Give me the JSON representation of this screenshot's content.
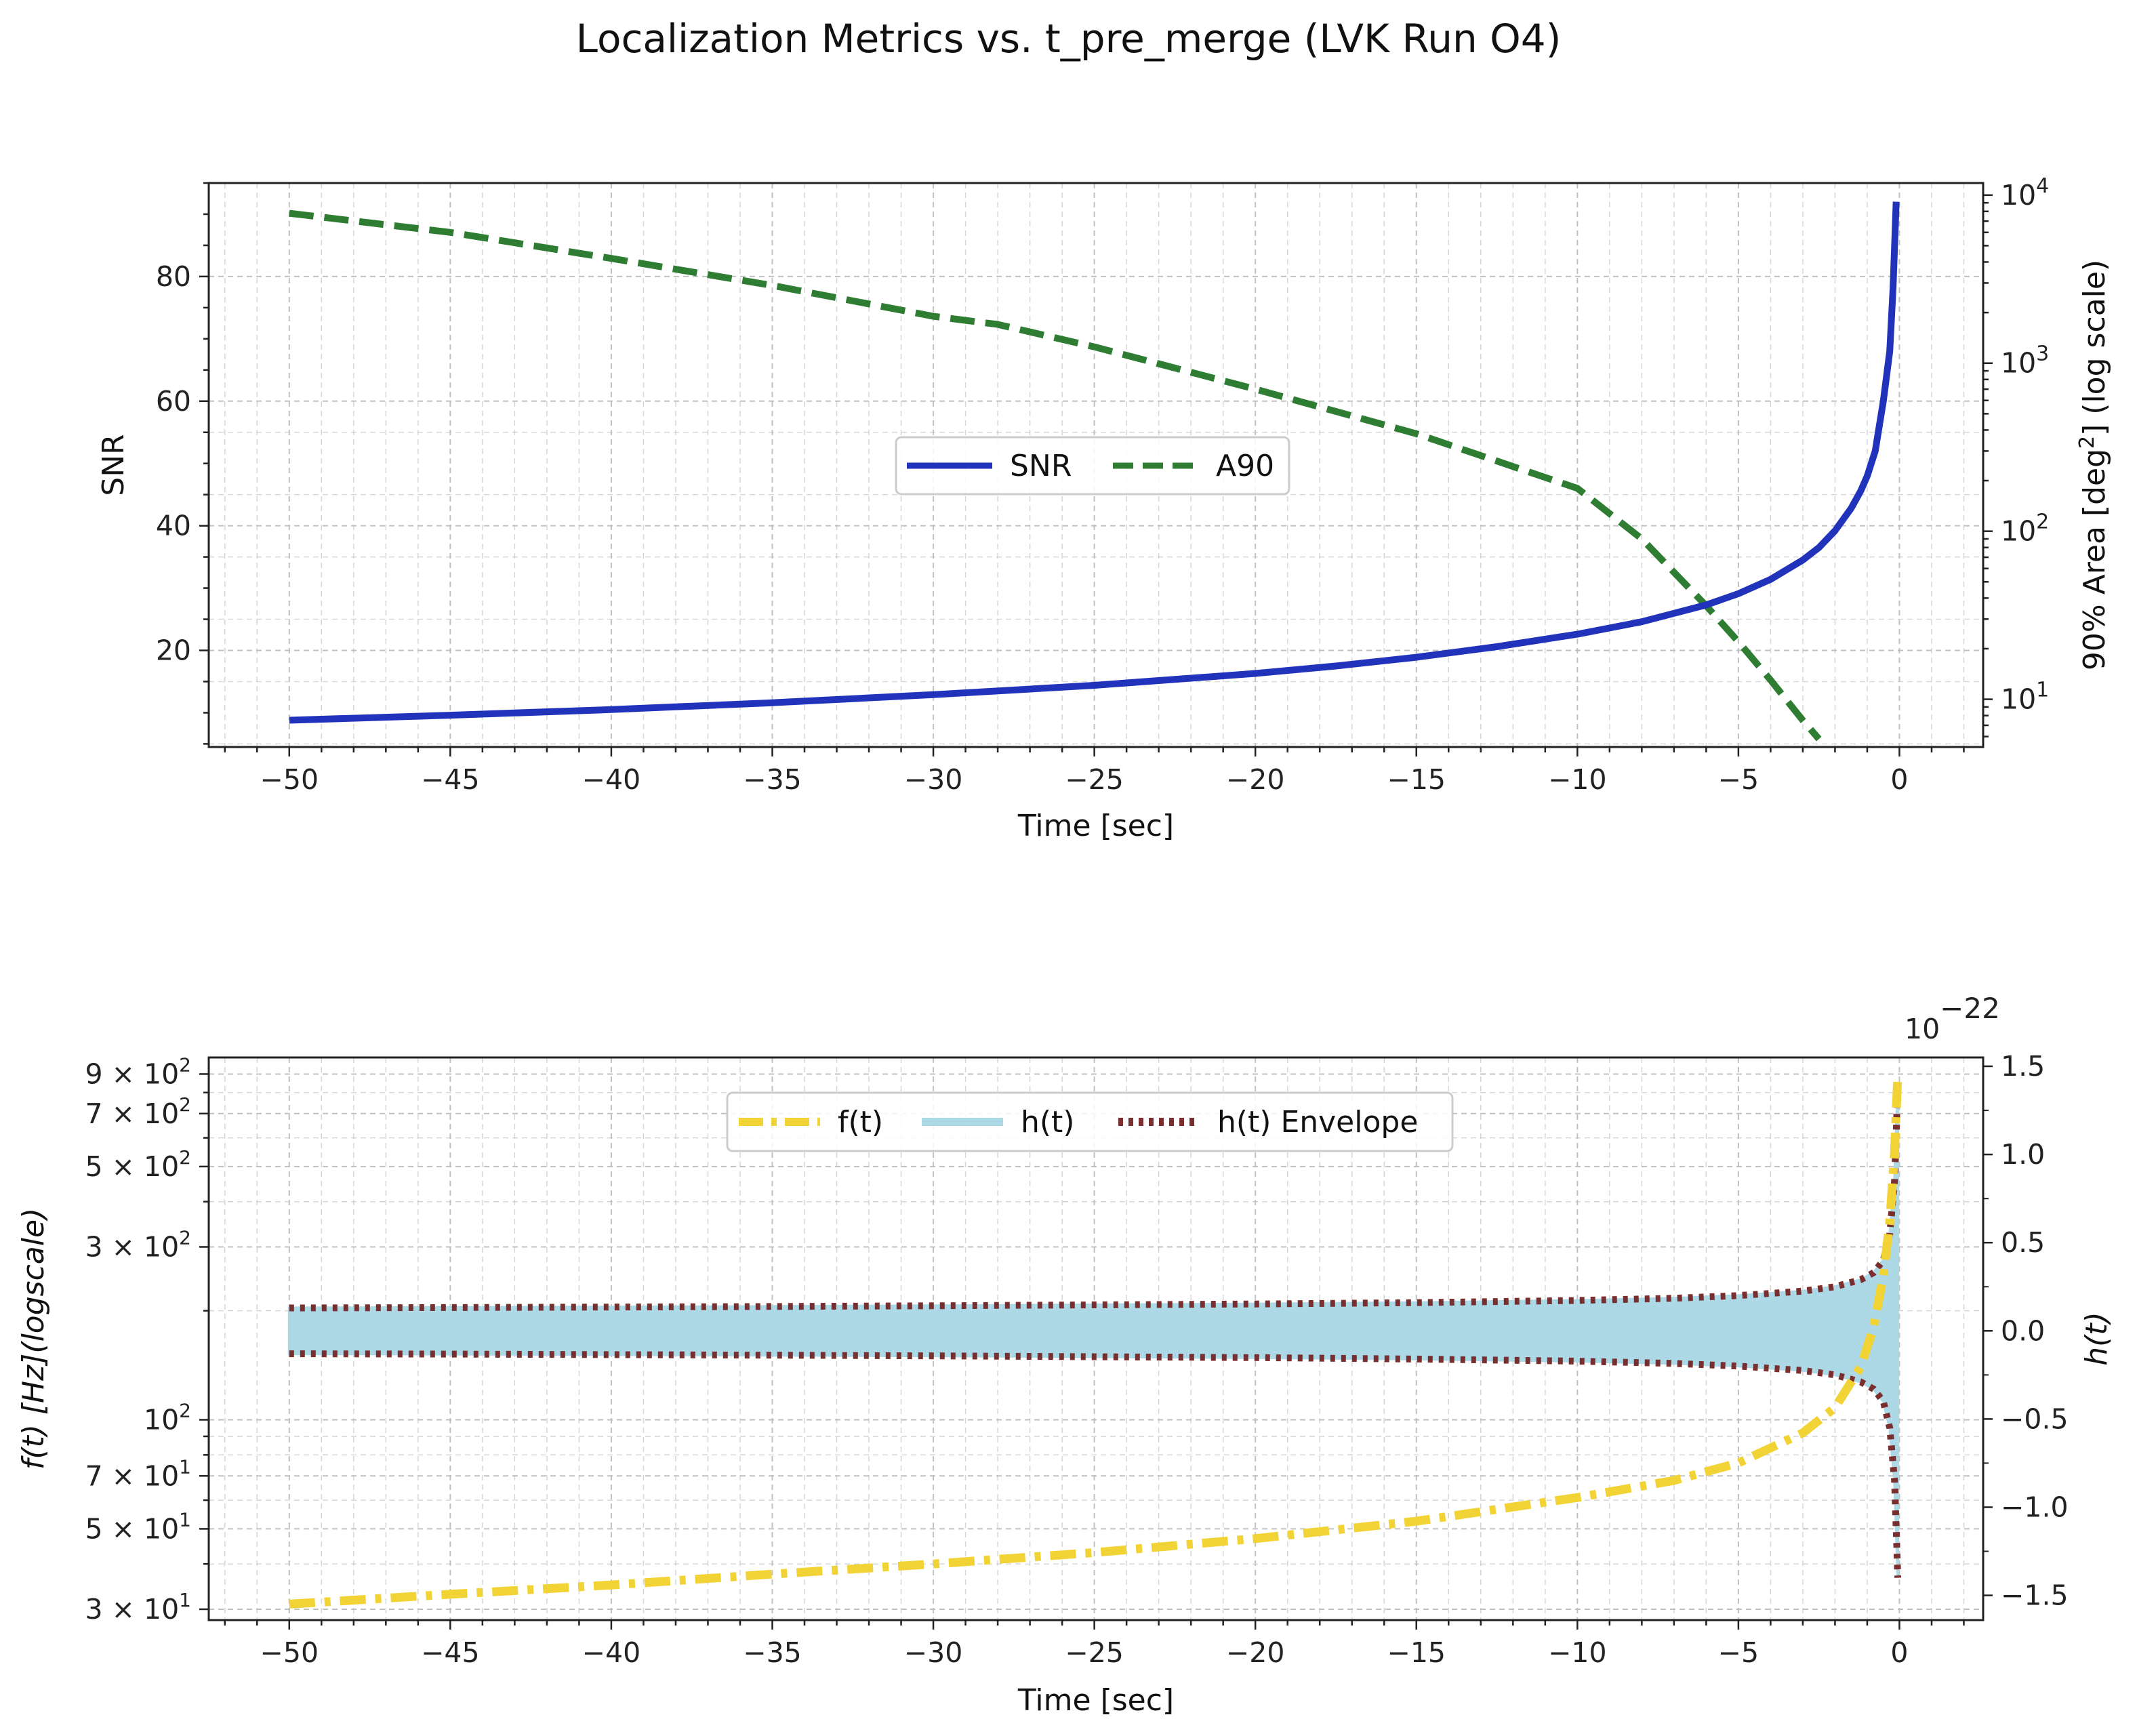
{
  "figure": {
    "title": "Localization Metrics vs. t_pre_merge (LVK Run O4)"
  },
  "colors": {
    "snr": "#2233bb",
    "a90": "#2e7d32",
    "f": "#f2d335",
    "h": "#add8e6",
    "envelope": "#7a2e2e",
    "grid": "#bbbbbb"
  },
  "chart_data": [
    {
      "type": "line",
      "title": "",
      "xlabel": "Time [sec]",
      "ylabel": "SNR",
      "y2label_parts": {
        "pre": "90% Area [deg",
        "sup": "2",
        "post": "] (log scale)"
      },
      "xlim": [
        -52.5,
        2.6
      ],
      "ylim": [
        4.5,
        95
      ],
      "y2lim": [
        5.2,
        11800
      ],
      "y2scale": "log",
      "x_ticks": [
        -50,
        -45,
        -40,
        -35,
        -30,
        -25,
        -20,
        -15,
        -10,
        -5,
        0
      ],
      "x_tick_labels": [
        "−50",
        "−45",
        "−40",
        "−35",
        "−30",
        "−25",
        "−20",
        "−15",
        "−10",
        "−5",
        "0"
      ],
      "y_ticks": [
        20,
        40,
        60,
        80
      ],
      "y_tick_labels": [
        "20",
        "40",
        "60",
        "80"
      ],
      "y2_tick_values": [
        10,
        100,
        1000,
        10000
      ],
      "y2_tick_base": "10",
      "y2_tick_exps": [
        "1",
        "2",
        "3",
        "4"
      ],
      "legend": {
        "position": "center",
        "entries": [
          "SNR",
          "A90"
        ]
      },
      "series": [
        {
          "name": "SNR",
          "axis": "left",
          "x": [
            -50,
            -45,
            -40,
            -35,
            -30,
            -25,
            -20,
            -17.5,
            -15,
            -12.5,
            -10,
            -8,
            -6,
            -5,
            -4,
            -3,
            -2.5,
            -2,
            -1.5,
            -1.2,
            -1,
            -0.75,
            -0.5,
            -0.3,
            -0.2,
            -0.1
          ],
          "values": [
            8.8,
            9.6,
            10.5,
            11.6,
            12.9,
            14.4,
            16.3,
            17.5,
            18.9,
            20.6,
            22.6,
            24.6,
            27.3,
            29.1,
            31.4,
            34.5,
            36.5,
            39.2,
            42.8,
            45.6,
            48,
            52,
            60,
            68,
            78,
            92
          ]
        },
        {
          "name": "A90",
          "axis": "right",
          "x": [
            -50,
            -45,
            -40,
            -35,
            -30,
            -28,
            -25,
            -20,
            -15,
            -10,
            -8,
            -6,
            -5,
            -4,
            -3,
            -2.5
          ],
          "values": [
            7800,
            6000,
            4200,
            2900,
            1900,
            1700,
            1250,
            700,
            380,
            180,
            90,
            36,
            22,
            13,
            7.5,
            5.8
          ]
        }
      ]
    },
    {
      "type": "line",
      "title": "",
      "xlabel": "Time [sec]",
      "ylabel": "f(t) [Hz](logscale)",
      "y2label": "h(t)",
      "offset_text_base": "10",
      "offset_text_exp": "−22",
      "xlim": [
        -52.5,
        2.6
      ],
      "ylim": [
        28,
        1000
      ],
      "yscale": "log",
      "y2lim": [
        -1.64,
        1.55
      ],
      "x_ticks": [
        -50,
        -45,
        -40,
        -35,
        -30,
        -25,
        -20,
        -15,
        -10,
        -5,
        0
      ],
      "x_tick_labels": [
        "−50",
        "−45",
        "−40",
        "−35",
        "−30",
        "−25",
        "−20",
        "−15",
        "−10",
        "−5",
        "0"
      ],
      "y_tick_values": [
        30,
        50,
        70,
        100,
        300,
        500,
        700,
        900
      ],
      "y_tick_mant": [
        "3",
        "5",
        "7",
        "",
        "3",
        "5",
        "7",
        "9"
      ],
      "y_tick_exp": [
        "1",
        "1",
        "1",
        "2",
        "2",
        "2",
        "2",
        "2"
      ],
      "y_tick_plain": [
        "",
        "",
        "",
        "10",
        "",
        "",
        "",
        ""
      ],
      "y2_ticks": [
        -1.5,
        -1.0,
        -0.5,
        0.0,
        0.5,
        1.0,
        1.5
      ],
      "y2_tick_labels": [
        "−1.5",
        "−1.0",
        "−0.5",
        "0.0",
        "0.5",
        "1.0",
        "1.5"
      ],
      "legend": {
        "position": "upper center",
        "entries": [
          "f(t)",
          "h(t)",
          "h(t) Envelope"
        ]
      },
      "series": [
        {
          "name": "f(t)",
          "axis": "left",
          "x": [
            -50,
            -45,
            -40,
            -35,
            -30,
            -25,
            -20,
            -15,
            -10,
            -7,
            -5,
            -3,
            -2,
            -1.2,
            -0.8,
            -0.5,
            -0.3,
            -0.15,
            -0.05
          ],
          "values": [
            31,
            33,
            35,
            37.5,
            40,
            43,
            47,
            52.5,
            61,
            68,
            76,
            92,
            108,
            140,
            180,
            250,
            350,
            550,
            900
          ]
        },
        {
          "name": "h(t) Envelope",
          "axis": "right",
          "x": [
            -50,
            -45,
            -40,
            -35,
            -30,
            -25,
            -20,
            -15,
            -10,
            -7,
            -5,
            -3,
            -2,
            -1.2,
            -0.8,
            -0.5,
            -0.3,
            -0.15,
            -0.05
          ],
          "values": [
            0.13,
            0.132,
            0.135,
            0.138,
            0.142,
            0.147,
            0.152,
            0.16,
            0.172,
            0.185,
            0.2,
            0.225,
            0.25,
            0.29,
            0.33,
            0.4,
            0.55,
            0.85,
            1.4
          ]
        },
        {
          "name": "h(t)",
          "axis": "right",
          "fill": "symmetric envelope band",
          "x": [
            -50,
            -0.05
          ],
          "values": [
            0.13,
            1.4
          ]
        }
      ]
    }
  ]
}
